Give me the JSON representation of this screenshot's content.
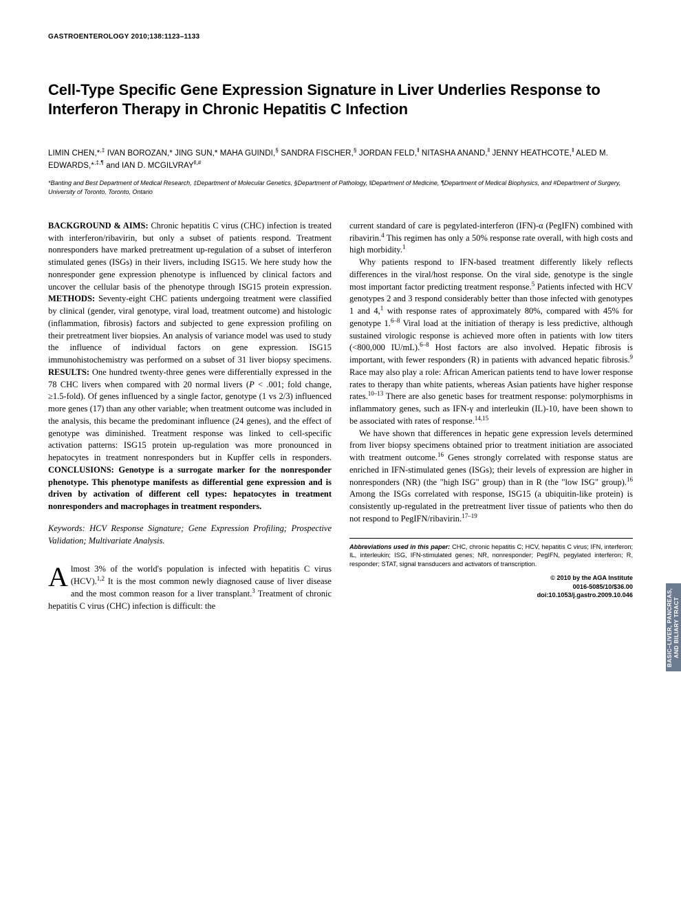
{
  "journal_header": "GASTROENTEROLOGY 2010;138:1123–1133",
  "title": "Cell-Type Specific Gene Expression Signature in Liver Underlies Response to Interferon Therapy in Chronic Hepatitis C Infection",
  "authors_html": "LIMIN CHEN,*<sup>,‡</sup> IVAN BOROZAN,* JING SUN,* MAHA GUINDI,<sup>§</sup> SANDRA FISCHER,<sup>§</sup> JORDAN FELD,<sup>‖</sup> NITASHA ANAND,<sup>‖</sup> JENNY HEATHCOTE,<sup>‖</sup> ALED M. EDWARDS,*<sup>,‡,¶</sup> and IAN D. MCGILVRAY<sup>‖,#</sup>",
  "affiliations": "*Banting and Best Department of Medical Research, ‡Department of Molecular Genetics, §Department of Pathology, ‖Department of Medicine, ¶Department of Medical Biophysics, and #Department of Surgery, University of Toronto, Toronto, Ontario",
  "abstract": {
    "background_label": "BACKGROUND & AIMS:",
    "background_text": " Chronic hepatitis C virus (CHC) infection is treated with interferon/ribavirin, but only a subset of patients respond. Treatment nonresponders have marked pretreatment up-regulation of a subset of interferon stimulated genes (ISGs) in their livers, including ISG15. We here study how the nonresponder gene expression phenotype is influenced by clinical factors and uncover the cellular basis of the phenotype through ISG15 protein expression. ",
    "methods_label": "METHODS:",
    "methods_text": " Seventy-eight CHC patients undergoing treatment were classified by clinical (gender, viral genotype, viral load, treatment outcome) and histologic (inflammation, fibrosis) factors and subjected to gene expression profiling on their pretreatment liver biopsies. An analysis of variance model was used to study the influence of individual factors on gene expression. ISG15 immunohistochemistry was performed on a subset of 31 liver biopsy specimens. ",
    "results_label": "RESULTS:",
    "results_text_html": " One hundred twenty-three genes were differentially expressed in the 78 CHC livers when compared with 20 normal livers (<i>P</i> < .001; fold change, ≥1.5-fold). Of genes influenced by a single factor, genotype (1 vs 2/3) influenced more genes (17) than any other variable; when treatment outcome was included in the analysis, this became the predominant influence (24 genes), and the effect of genotype was diminished. Treatment response was linked to cell-specific activation patterns: ISG15 protein up-regulation was more pronounced in hepatocytes in treatment nonresponders but in Kupffer cells in responders. ",
    "conclusions_label": "CONCLUSIONS:",
    "conclusions_text": " Genotype is a surrogate marker for the nonresponder phenotype. This phenotype manifests as differential gene expression and is driven by activation of different cell types: hepatocytes in treatment nonresponders and macrophages in treatment responders."
  },
  "keywords": {
    "label": "Keywords:",
    "text": " HCV Response Signature; Gene Expression Profiling; Prospective Validation; Multivariate Analysis."
  },
  "intro_para_html": "lmost 3% of the world's population is infected with hepatitis C virus (HCV).<sup>1,2</sup> It is the most common newly diagnosed cause of liver disease and the most common reason for a liver transplant.<sup>3</sup> Treatment of chronic hepatitis C virus (CHC) infection is difficult: the",
  "intro_dropcap": "A",
  "right_col": {
    "p1_html": "current standard of care is pegylated-interferon (IFN)-α (PegIFN) combined with ribavirin.<sup>4</sup> This regimen has only a 50% response rate overall, with high costs and high morbidity.<sup>1</sup>",
    "p2_html": "Why patients respond to IFN-based treatment differently likely reflects differences in the viral/host response. On the viral side, genotype is the single most important factor predicting treatment response.<sup>5</sup> Patients infected with HCV genotypes 2 and 3 respond considerably better than those infected with genotypes 1 and 4,<sup>1</sup> with response rates of approximately 80%, compared with 45% for genotype 1.<sup>6–8</sup> Viral load at the initiation of therapy is less predictive, although sustained virologic response is achieved more often in patients with low titers (<800,000 IU/mL).<sup>6–8</sup> Host factors are also involved. Hepatic fibrosis is important, with fewer responders (R) in patients with advanced hepatic fibrosis.<sup>9</sup> Race may also play a role: African American patients tend to have lower response rates to therapy than white patients, whereas Asian patients have higher response rates.<sup>10–13</sup> There are also genetic bases for treatment response: polymorphisms in inflammatory genes, such as IFN-γ and interleukin (IL)-10, have been shown to be associated with rates of response.<sup>14,15</sup>",
    "p3_html": "We have shown that differences in hepatic gene expression levels determined from liver biopsy specimens obtained prior to treatment initiation are associated with treatment outcome.<sup>16</sup> Genes strongly correlated with response status are enriched in IFN-stimulated genes (ISGs); their levels of expression are higher in nonresponders (NR) (the \"high ISG\" group) than in R (the \"low ISG\" group).<sup>16</sup> Among the ISGs correlated with response, ISG15 (a ubiquitin-like protein) is consistently up-regulated in the pretreatment liver tissue of patients who then do not respond to PegIFN/ribavirin.<sup>17–19</sup>"
  },
  "footer": {
    "abbrev_label": "Abbreviations used in this paper:",
    "abbrev_text": " CHC, chronic hepatitis C; HCV, hepatitis C virus; IFN, interferon; IL, interleukin; ISG, IFN-stimulated genes; NR, nonresponder; PegIFN, pegylated interferon; R, responder; STAT, signal transducers and activators of transcription.",
    "copyright": "© 2010 by the AGA Institute",
    "issn": "0016-5085/10/$36.00",
    "doi": "doi:10.1053/j.gastro.2009.10.046"
  },
  "side_tab": "BASIC–LIVER, PANCREAS, AND BILIARY TRACT",
  "colors": {
    "text": "#000000",
    "background": "#ffffff",
    "tab_bg": "#6b7a8f",
    "tab_text": "#ffffff"
  },
  "typography": {
    "journal_header_pt": 10,
    "title_pt": 22,
    "authors_pt": 11.5,
    "affiliations_pt": 9,
    "body_pt": 12.5,
    "footer_pt": 9.2,
    "side_tab_pt": 8.2
  }
}
